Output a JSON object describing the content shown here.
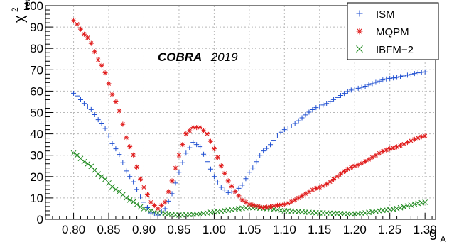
{
  "chart_data": {
    "type": "scatter",
    "annotation": {
      "bold": "COBRA",
      "normal": "2019"
    },
    "ylabel": {
      "base": "χ",
      "sup": "2",
      "sub": "red"
    },
    "xlabel": {
      "base": "g",
      "sub": "A"
    },
    "xlim": [
      0.76,
      1.315
    ],
    "ylim": [
      0,
      100
    ],
    "xticks": [
      0.8,
      0.85,
      0.9,
      0.95,
      1.0,
      1.05,
      1.1,
      1.15,
      1.2,
      1.25,
      1.3
    ],
    "xtick_labels": [
      "0.80",
      "0.85",
      "0.90",
      "0.95",
      "1.00",
      "1.05",
      "1.10",
      "1.15",
      "1.20",
      "1.25",
      "1.30"
    ],
    "yticks": [
      0,
      10,
      20,
      30,
      40,
      50,
      60,
      70,
      80,
      90,
      100
    ],
    "ytick_labels": [
      "0",
      "10",
      "20",
      "30",
      "40",
      "50",
      "60",
      "70",
      "80",
      "90",
      "100"
    ],
    "grid": true,
    "legend_position": "top-right",
    "series": [
      {
        "name": "ISM",
        "marker": "plus",
        "color": "#1f4fd1",
        "points": [
          [
            0.8,
            59
          ],
          [
            0.82,
            53
          ],
          [
            0.84,
            45
          ],
          [
            0.86,
            33
          ],
          [
            0.88,
            20
          ],
          [
            0.9,
            8
          ],
          [
            0.91,
            3
          ],
          [
            0.92,
            2
          ],
          [
            0.93,
            5
          ],
          [
            0.94,
            12
          ],
          [
            0.95,
            22
          ],
          [
            0.96,
            31
          ],
          [
            0.97,
            36
          ],
          [
            0.98,
            34
          ],
          [
            0.99,
            27
          ],
          [
            1.0,
            20
          ],
          [
            1.01,
            15
          ],
          [
            1.02,
            12.5
          ],
          [
            1.03,
            13
          ],
          [
            1.04,
            16
          ],
          [
            1.05,
            22
          ],
          [
            1.07,
            32
          ],
          [
            1.1,
            42
          ],
          [
            1.15,
            53
          ],
          [
            1.2,
            61
          ],
          [
            1.25,
            66
          ],
          [
            1.3,
            69
          ]
        ]
      },
      {
        "name": "MQPM",
        "marker": "star",
        "color": "#e01b1b",
        "points": [
          [
            0.8,
            93
          ],
          [
            0.82,
            85
          ],
          [
            0.84,
            72
          ],
          [
            0.86,
            55
          ],
          [
            0.88,
            34
          ],
          [
            0.9,
            15
          ],
          [
            0.91,
            8
          ],
          [
            0.92,
            5
          ],
          [
            0.93,
            8
          ],
          [
            0.94,
            18
          ],
          [
            0.95,
            30
          ],
          [
            0.96,
            40
          ],
          [
            0.97,
            43
          ],
          [
            0.98,
            43
          ],
          [
            0.99,
            40
          ],
          [
            1.0,
            33
          ],
          [
            1.01,
            25
          ],
          [
            1.02,
            18
          ],
          [
            1.03,
            13
          ],
          [
            1.04,
            9
          ],
          [
            1.05,
            7
          ],
          [
            1.07,
            5.5
          ],
          [
            1.1,
            7
          ],
          [
            1.15,
            15
          ],
          [
            1.2,
            25
          ],
          [
            1.25,
            33
          ],
          [
            1.3,
            39
          ]
        ]
      },
      {
        "name": "IBFM−2",
        "marker": "x",
        "color": "#1f8a1f",
        "points": [
          [
            0.8,
            31
          ],
          [
            0.82,
            26
          ],
          [
            0.84,
            20
          ],
          [
            0.86,
            14
          ],
          [
            0.88,
            9
          ],
          [
            0.9,
            5
          ],
          [
            0.92,
            3
          ],
          [
            0.95,
            2
          ],
          [
            0.98,
            2.5
          ],
          [
            1.0,
            3.5
          ],
          [
            1.05,
            5.5
          ],
          [
            1.08,
            5
          ],
          [
            1.1,
            4
          ],
          [
            1.15,
            3
          ],
          [
            1.2,
            2.5
          ],
          [
            1.25,
            4.5
          ],
          [
            1.3,
            8
          ]
        ]
      }
    ]
  }
}
